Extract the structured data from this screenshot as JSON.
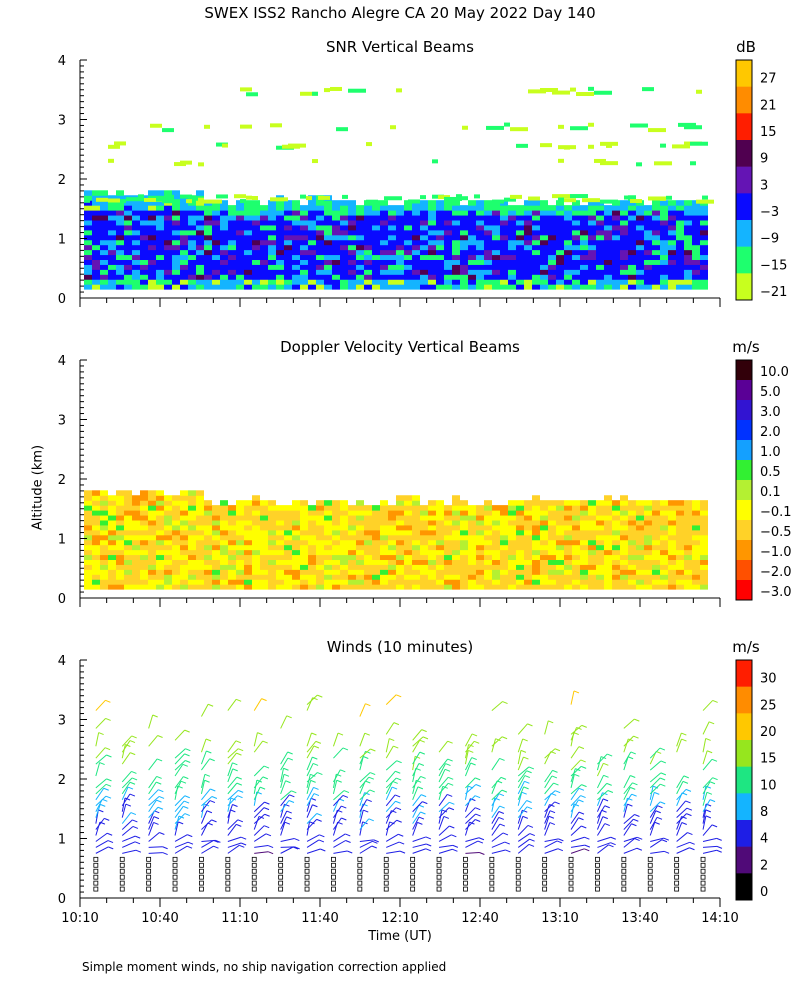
{
  "title": "SWEX ISS2 Rancho Alegre CA  20 May 2022 Day 140",
  "y_axis_label": "Altitude (km)",
  "x_axis_title": "Time (UT)",
  "footnote": "Simple moment winds, no ship navigation correction applied",
  "colors": {
    "axis": "#000000",
    "background": "#ffffff"
  },
  "chart_data": [
    {
      "type": "heatmap",
      "title": "SNR Vertical Beams",
      "unit": "dB",
      "ylim": [
        0,
        4
      ],
      "yticks": [
        "0",
        "1",
        "2",
        "3",
        "4"
      ],
      "x_range": [
        "10:10",
        "14:10"
      ],
      "colorbar": {
        "labels": [
          "27",
          "21",
          "15",
          "9",
          "3",
          "−3",
          "−9",
          "−15",
          "−21"
        ],
        "colors": [
          "#ffc800",
          "#ff8c00",
          "#ff1e00",
          "#500050",
          "#6414b4",
          "#0a0aff",
          "#14b4ff",
          "#1eff6e",
          "#c8ff1e"
        ]
      },
      "features": {
        "layer_top_km": 1.6,
        "layer_bottom_km": 0.15,
        "strong_core_km": [
          0.3,
          1.4
        ],
        "sparse_layers_km": [
          1.7,
          2.3,
          2.6,
          2.9,
          3.5
        ]
      }
    },
    {
      "type": "heatmap",
      "title": "Doppler Velocity Vertical Beams",
      "unit": "m/s",
      "ylim": [
        0,
        4
      ],
      "yticks": [
        "0",
        "1",
        "2",
        "3",
        "4"
      ],
      "x_range": [
        "10:10",
        "14:10"
      ],
      "colorbar": {
        "labels": [
          "10.0",
          "5.0",
          "3.0",
          "2.0",
          "1.0",
          "0.5",
          "0.1",
          "−0.1",
          "−0.5",
          "−1.0",
          "−2.0",
          "−3.0"
        ],
        "colors": [
          "#32000a",
          "#5a0096",
          "#3214d2",
          "#0032ff",
          "#14a0ff",
          "#32f032",
          "#b4f032",
          "#ffff00",
          "#ffd228",
          "#ff9600",
          "#ff5000",
          "#ff0000"
        ]
      },
      "features": {
        "layer_top_km": 1.6,
        "layer_bottom_km": 0.15,
        "dominant_range_ms": [
          -0.5,
          0.1
        ]
      }
    },
    {
      "type": "scatter",
      "title": "Winds (10 minutes)",
      "unit": "m/s",
      "ylim": [
        0,
        4
      ],
      "yticks": [
        "0",
        "1",
        "2",
        "3",
        "4"
      ],
      "xticks": [
        "10:10",
        "10:40",
        "11:10",
        "11:40",
        "12:10",
        "12:40",
        "13:10",
        "13:40",
        "14:10"
      ],
      "x_range_minutes": [
        0,
        240
      ],
      "profile_interval_minutes": 10,
      "colorbar": {
        "labels": [
          "30",
          "25",
          "20",
          "15",
          "10",
          "8",
          "4",
          "2",
          "0"
        ],
        "colors": [
          "#ff1e00",
          "#ff8c00",
          "#ffc800",
          "#96e61e",
          "#1ee682",
          "#14b4ff",
          "#1e1ee6",
          "#500a78",
          "#000000"
        ]
      },
      "profile_speeds_ms": {
        "altitude_km": [
          0.2,
          0.4,
          0.6,
          0.9,
          1.2,
          1.5,
          1.8,
          2.1,
          2.4,
          3.1
        ],
        "speed_ms": [
          1,
          2,
          4,
          6,
          7,
          8,
          12,
          14,
          16,
          20
        ]
      }
    }
  ]
}
